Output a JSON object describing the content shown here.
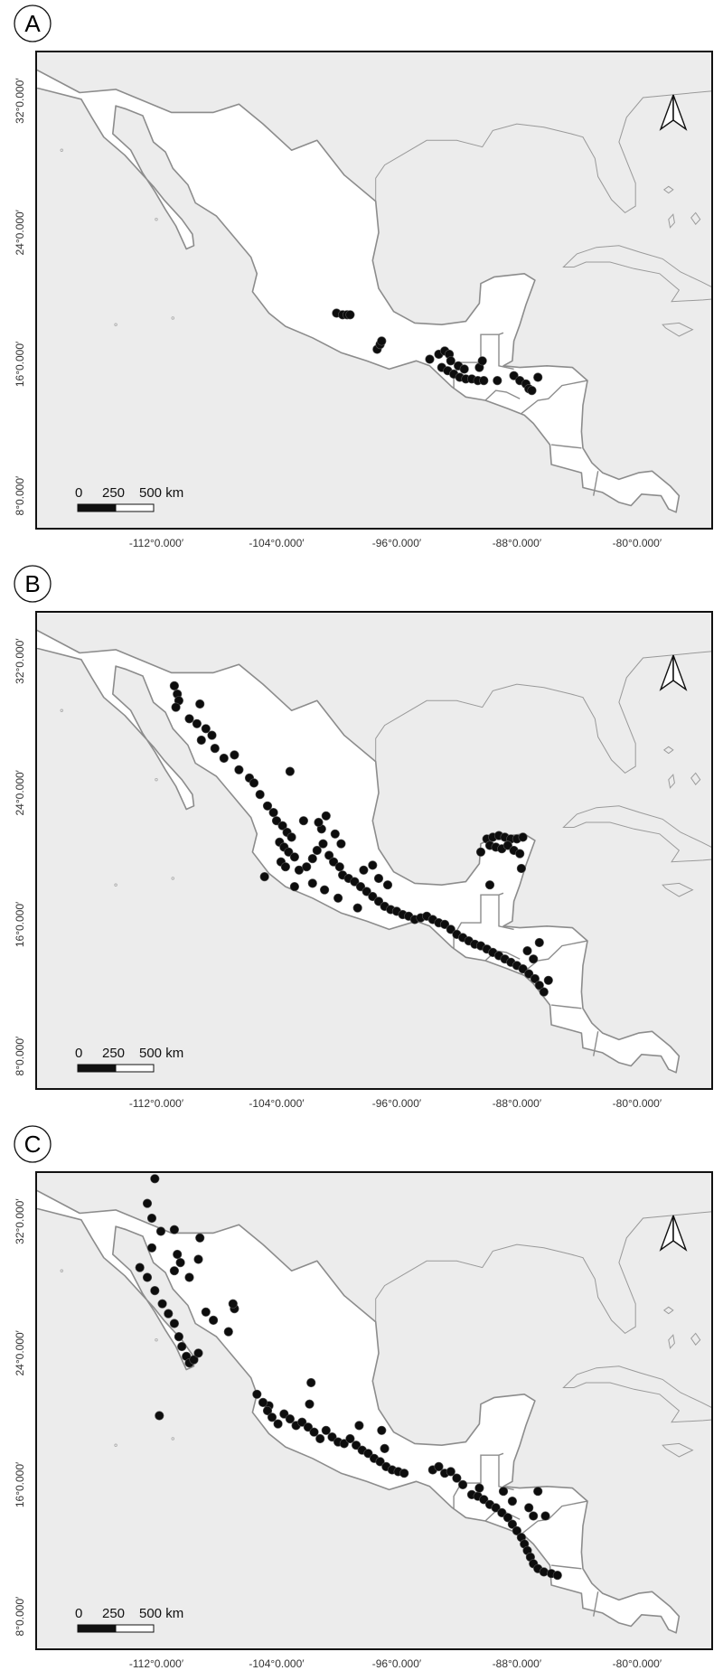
{
  "panels": [
    {
      "label": "A",
      "lat_ticks": [
        "32°0.000′",
        "24°0.000′",
        "16°0.000′",
        "8°0.000′"
      ],
      "lon_ticks": [
        "-112°0.000′",
        "-104°0.000′",
        "-96°0.000′",
        "-88°0.000′",
        "-80°0.000′"
      ],
      "scale": {
        "t0": "0",
        "t1": "250",
        "t2": "500 km"
      },
      "points": [
        [
          -100.0,
          19.1
        ],
        [
          -99.6,
          19.0
        ],
        [
          -99.3,
          19.0
        ],
        [
          -99.1,
          19.0
        ],
        [
          -97.3,
          16.9
        ],
        [
          -97.1,
          17.2
        ],
        [
          -97.0,
          17.4
        ],
        [
          -93.8,
          16.3
        ],
        [
          -93.2,
          16.6
        ],
        [
          -92.8,
          16.8
        ],
        [
          -92.5,
          16.6
        ],
        [
          -92.4,
          16.2
        ],
        [
          -93.0,
          15.8
        ],
        [
          -92.6,
          15.6
        ],
        [
          -92.2,
          15.4
        ],
        [
          -91.8,
          15.2
        ],
        [
          -91.4,
          15.1
        ],
        [
          -91.0,
          15.1
        ],
        [
          -90.6,
          15.0
        ],
        [
          -90.2,
          15.0
        ],
        [
          -91.9,
          15.9
        ],
        [
          -91.5,
          15.7
        ],
        [
          -90.5,
          15.8
        ],
        [
          -90.3,
          16.2
        ],
        [
          -89.3,
          15.0
        ],
        [
          -88.2,
          15.3
        ],
        [
          -87.8,
          15.0
        ],
        [
          -87.4,
          14.8
        ],
        [
          -87.2,
          14.5
        ],
        [
          -87.0,
          14.4
        ],
        [
          -86.6,
          15.2
        ]
      ]
    },
    {
      "label": "B",
      "lat_ticks": [
        "32°0.000′",
        "24°0.000′",
        "16°0.000′",
        "8°0.000′"
      ],
      "lon_ticks": [
        "-112°0.000′",
        "-104°0.000′",
        "-96°0.000′",
        "-88°0.000′",
        "-80°0.000′"
      ],
      "scale": {
        "t0": "0",
        "t1": "250",
        "t2": "500 km"
      },
      "points": [
        [
          -110.8,
          30.5
        ],
        [
          -110.6,
          30.0
        ],
        [
          -110.5,
          29.6
        ],
        [
          -110.7,
          29.2
        ],
        [
          -109.1,
          29.4
        ],
        [
          -109.8,
          28.5
        ],
        [
          -109.3,
          28.2
        ],
        [
          -108.7,
          27.9
        ],
        [
          -108.3,
          27.5
        ],
        [
          -109.0,
          27.2
        ],
        [
          -108.1,
          26.7
        ],
        [
          -107.5,
          26.1
        ],
        [
          -106.8,
          26.3
        ],
        [
          -106.5,
          25.4
        ],
        [
          -105.8,
          24.9
        ],
        [
          -105.5,
          24.6
        ],
        [
          -105.1,
          23.9
        ],
        [
          -104.6,
          23.2
        ],
        [
          -104.2,
          22.8
        ],
        [
          -104.0,
          22.3
        ],
        [
          -103.6,
          22.0
        ],
        [
          -103.3,
          21.6
        ],
        [
          -103.0,
          21.3
        ],
        [
          -103.8,
          21.0
        ],
        [
          -103.5,
          20.7
        ],
        [
          -103.2,
          20.4
        ],
        [
          -102.8,
          20.1
        ],
        [
          -103.7,
          19.8
        ],
        [
          -103.4,
          19.5
        ],
        [
          -102.5,
          19.3
        ],
        [
          -102.0,
          19.5
        ],
        [
          -101.6,
          20.0
        ],
        [
          -101.3,
          20.5
        ],
        [
          -100.9,
          20.9
        ],
        [
          -100.5,
          20.2
        ],
        [
          -100.2,
          19.8
        ],
        [
          -99.8,
          19.5
        ],
        [
          -99.6,
          19.0
        ],
        [
          -99.2,
          18.8
        ],
        [
          -98.8,
          18.6
        ],
        [
          -98.4,
          18.3
        ],
        [
          -98.0,
          18.0
        ],
        [
          -97.6,
          17.7
        ],
        [
          -97.2,
          17.4
        ],
        [
          -96.8,
          17.1
        ],
        [
          -96.4,
          16.9
        ],
        [
          -96.0,
          16.8
        ],
        [
          -95.6,
          16.6
        ],
        [
          -95.2,
          16.5
        ],
        [
          -94.8,
          16.3
        ],
        [
          -94.4,
          16.4
        ],
        [
          -94.0,
          16.5
        ],
        [
          -93.6,
          16.3
        ],
        [
          -93.2,
          16.1
        ],
        [
          -92.8,
          16.0
        ],
        [
          -92.4,
          15.7
        ],
        [
          -92.0,
          15.4
        ],
        [
          -91.6,
          15.2
        ],
        [
          -91.2,
          15.0
        ],
        [
          -90.8,
          14.8
        ],
        [
          -90.4,
          14.7
        ],
        [
          -90.0,
          14.5
        ],
        [
          -89.6,
          14.3
        ],
        [
          -89.2,
          14.1
        ],
        [
          -88.8,
          13.9
        ],
        [
          -88.4,
          13.7
        ],
        [
          -88.0,
          13.5
        ],
        [
          -87.6,
          13.3
        ],
        [
          -87.2,
          13.0
        ],
        [
          -86.8,
          12.7
        ],
        [
          -86.5,
          12.3
        ],
        [
          -86.2,
          11.9
        ],
        [
          -85.9,
          12.6
        ],
        [
          -86.9,
          13.9
        ],
        [
          -87.3,
          14.4
        ],
        [
          -86.5,
          14.9
        ],
        [
          -101.0,
          21.8
        ],
        [
          -100.7,
          22.6
        ],
        [
          -101.6,
          18.5
        ],
        [
          -100.8,
          18.1
        ],
        [
          -99.9,
          17.6
        ],
        [
          -98.6,
          17.0
        ],
        [
          -99.7,
          20.9
        ],
        [
          -102.2,
          22.3
        ],
        [
          -97.6,
          19.6
        ],
        [
          -97.2,
          18.8
        ],
        [
          -96.6,
          18.4
        ],
        [
          -98.2,
          19.3
        ],
        [
          -100.1,
          21.5
        ],
        [
          -90.0,
          21.2
        ],
        [
          -89.6,
          21.3
        ],
        [
          -89.2,
          21.4
        ],
        [
          -88.8,
          21.3
        ],
        [
          -88.4,
          21.2
        ],
        [
          -88.0,
          21.2
        ],
        [
          -87.6,
          21.3
        ],
        [
          -89.8,
          20.8
        ],
        [
          -89.4,
          20.7
        ],
        [
          -89.0,
          20.6
        ],
        [
          -88.6,
          20.8
        ],
        [
          -88.2,
          20.5
        ],
        [
          -87.8,
          20.3
        ],
        [
          -90.4,
          20.4
        ],
        [
          -87.7,
          19.4
        ],
        [
          -89.8,
          18.4
        ],
        [
          -103.1,
          25.3
        ],
        [
          -101.2,
          22.2
        ],
        [
          -104.8,
          18.9
        ],
        [
          -102.8,
          18.3
        ]
      ]
    },
    {
      "label": "C",
      "lat_ticks": [
        "32°0.000′",
        "24°0.000′",
        "16°0.000′",
        "8°0.000′"
      ],
      "lon_ticks": [
        "-112°0.000′",
        "-104°0.000′",
        "-96°0.000′",
        "-88°0.000′",
        "-80°0.000′"
      ],
      "scale": {
        "t0": "0",
        "t1": "250",
        "t2": "500 km"
      },
      "points": [
        [
          -112.1,
          34.6
        ],
        [
          -112.6,
          33.1
        ],
        [
          -112.3,
          32.2
        ],
        [
          -111.7,
          31.4
        ],
        [
          -110.8,
          31.5
        ],
        [
          -112.3,
          30.4
        ],
        [
          -110.6,
          30.0
        ],
        [
          -110.4,
          29.5
        ],
        [
          -110.8,
          29.0
        ],
        [
          -109.8,
          28.6
        ],
        [
          -109.1,
          31.0
        ],
        [
          -109.2,
          29.7
        ],
        [
          -113.1,
          29.2
        ],
        [
          -112.6,
          28.6
        ],
        [
          -112.1,
          27.8
        ],
        [
          -111.6,
          27.0
        ],
        [
          -111.2,
          26.4
        ],
        [
          -110.8,
          25.8
        ],
        [
          -110.5,
          25.0
        ],
        [
          -110.3,
          24.4
        ],
        [
          -110.0,
          23.8
        ],
        [
          -109.8,
          23.4
        ],
        [
          -109.5,
          23.6
        ],
        [
          -109.2,
          24.0
        ],
        [
          -108.7,
          26.5
        ],
        [
          -108.2,
          26.0
        ],
        [
          -107.2,
          25.3
        ],
        [
          -106.8,
          26.7
        ],
        [
          -106.9,
          27.0
        ],
        [
          -111.8,
          20.2
        ],
        [
          -104.5,
          20.8
        ],
        [
          -105.3,
          21.5
        ],
        [
          -104.9,
          21.0
        ],
        [
          -104.6,
          20.5
        ],
        [
          -104.3,
          20.1
        ],
        [
          -103.9,
          19.7
        ],
        [
          -103.5,
          20.3
        ],
        [
          -103.1,
          20.0
        ],
        [
          -102.7,
          19.6
        ],
        [
          -102.3,
          19.8
        ],
        [
          -101.9,
          19.5
        ],
        [
          -101.5,
          19.2
        ],
        [
          -101.1,
          18.8
        ],
        [
          -100.7,
          19.3
        ],
        [
          -100.3,
          18.9
        ],
        [
          -99.9,
          18.6
        ],
        [
          -99.5,
          18.5
        ],
        [
          -99.1,
          18.8
        ],
        [
          -98.7,
          18.4
        ],
        [
          -98.3,
          18.1
        ],
        [
          -97.9,
          17.9
        ],
        [
          -97.5,
          17.6
        ],
        [
          -97.1,
          17.4
        ],
        [
          -96.7,
          17.1
        ],
        [
          -96.3,
          16.9
        ],
        [
          -95.9,
          16.8
        ],
        [
          -95.5,
          16.7
        ],
        [
          -97.0,
          19.3
        ],
        [
          -96.8,
          18.2
        ],
        [
          -98.5,
          19.6
        ],
        [
          -101.7,
          22.2
        ],
        [
          -101.8,
          20.9
        ],
        [
          -93.6,
          16.9
        ],
        [
          -93.2,
          17.1
        ],
        [
          -92.8,
          16.7
        ],
        [
          -92.4,
          16.8
        ],
        [
          -92.0,
          16.4
        ],
        [
          -91.6,
          16.0
        ],
        [
          -91.0,
          15.4
        ],
        [
          -90.6,
          15.3
        ],
        [
          -90.2,
          15.1
        ],
        [
          -89.8,
          14.8
        ],
        [
          -89.4,
          14.6
        ],
        [
          -89.0,
          14.3
        ],
        [
          -88.6,
          14.0
        ],
        [
          -88.3,
          13.6
        ],
        [
          -88.0,
          13.2
        ],
        [
          -87.7,
          12.8
        ],
        [
          -87.5,
          12.4
        ],
        [
          -87.3,
          12.0
        ],
        [
          -87.1,
          11.6
        ],
        [
          -86.9,
          11.2
        ],
        [
          -86.6,
          10.9
        ],
        [
          -86.2,
          10.7
        ],
        [
          -85.7,
          10.6
        ],
        [
          -85.3,
          10.5
        ],
        [
          -87.2,
          14.6
        ],
        [
          -86.9,
          14.1
        ],
        [
          -86.6,
          15.6
        ],
        [
          -86.1,
          14.1
        ],
        [
          -88.3,
          15.0
        ],
        [
          -88.9,
          15.6
        ],
        [
          -90.5,
          15.8
        ]
      ]
    }
  ]
}
